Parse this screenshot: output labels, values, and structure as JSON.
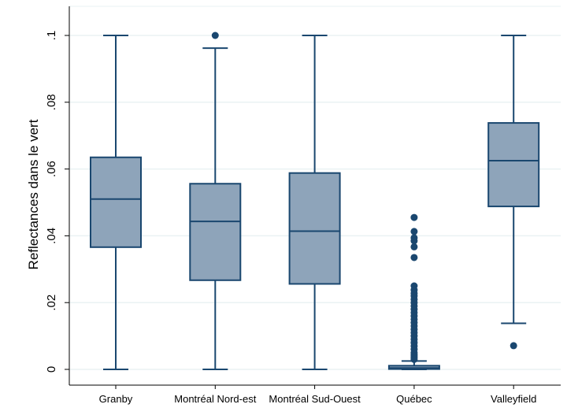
{
  "chart_data": {
    "type": "boxplot",
    "ylabel": "Reflectances dans le vert",
    "xlabel": "",
    "ylim": [
      0,
      0.1
    ],
    "yticks": [
      {
        "value": 0,
        "label": "0"
      },
      {
        "value": 0.02,
        "label": ".02"
      },
      {
        "value": 0.04,
        "label": ".04"
      },
      {
        "value": 0.06,
        "label": ".06"
      },
      {
        "value": 0.08,
        "label": ".08"
      },
      {
        "value": 0.1,
        "label": ".1"
      }
    ],
    "grid": true,
    "colors": {
      "box_fill": "#8ea4ba",
      "line": "#1a476f",
      "grid": "#eaf2f3",
      "frame": "#000000"
    },
    "categories": [
      "Granby",
      "Montréal Nord-est",
      "Montréal Sud-Ouest",
      "Québec",
      "Valleyfield"
    ],
    "boxes": [
      {
        "category": "Granby",
        "whisker_low": 0,
        "q1": 0.0366,
        "median": 0.051,
        "q3": 0.0635,
        "whisker_high": 0.1,
        "outliers": []
      },
      {
        "category": "Montréal Nord-est",
        "whisker_low": 0,
        "q1": 0.0267,
        "median": 0.0443,
        "q3": 0.0556,
        "whisker_high": 0.0962,
        "outliers": [
          0.1
        ]
      },
      {
        "category": "Montréal Sud-Ouest",
        "whisker_low": 0,
        "q1": 0.0256,
        "median": 0.0414,
        "q3": 0.0588,
        "whisker_high": 0.1,
        "outliers": []
      },
      {
        "category": "Québec",
        "whisker_low": 0,
        "q1": 0.0001,
        "median": 0.0004,
        "q3": 0.0011,
        "whisker_high": 0.0025,
        "outliers": [
          0.0455,
          0.0413,
          0.0394,
          0.0385,
          0.0367,
          0.0335,
          0.025,
          0.0238,
          0.0228,
          0.022,
          0.021,
          0.02,
          0.019,
          0.018,
          0.017,
          0.016,
          0.015,
          0.014,
          0.013,
          0.012,
          0.011,
          0.01,
          0.009,
          0.008,
          0.007,
          0.006,
          0.005,
          0.0045,
          0.004,
          0.0035,
          0.003
        ]
      },
      {
        "category": "Valleyfield",
        "whisker_low": 0.0138,
        "q1": 0.0488,
        "median": 0.0625,
        "q3": 0.0738,
        "whisker_high": 0.1,
        "outliers": [
          0.0071
        ]
      }
    ]
  }
}
